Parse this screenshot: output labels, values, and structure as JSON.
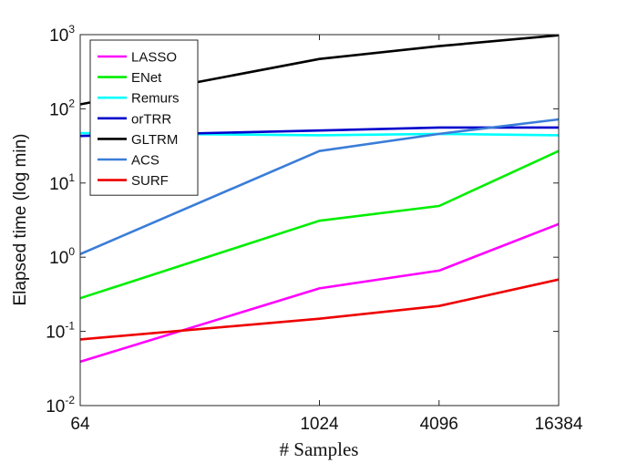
{
  "chart_data": {
    "type": "line",
    "title": "",
    "xlabel": "# Samples",
    "ylabel": "Elapsed time (log min)",
    "x": [
      64,
      1024,
      4096,
      16384
    ],
    "x_scale": "log",
    "xlim": [
      64,
      16384
    ],
    "x_ticks": [
      "64",
      "1024",
      "4096",
      "16384"
    ],
    "y_scale": "log",
    "ylim": [
      0.01,
      1000
    ],
    "y_ticks": [
      {
        "base": "10",
        "exp": "-2",
        "value": 0.01
      },
      {
        "base": "10",
        "exp": "-1",
        "value": 0.1
      },
      {
        "base": "10",
        "exp": "0",
        "value": 1
      },
      {
        "base": "10",
        "exp": "1",
        "value": 10
      },
      {
        "base": "10",
        "exp": "2",
        "value": 100
      },
      {
        "base": "10",
        "exp": "3",
        "value": 1000
      }
    ],
    "grid": false,
    "legend_position": "top-left",
    "series": [
      {
        "name": "LASSO",
        "color": "#ff00ff",
        "values": [
          0.039,
          0.38,
          0.66,
          2.8
        ]
      },
      {
        "name": "ENet",
        "color": "#00ee00",
        "values": [
          0.28,
          3.1,
          4.9,
          27
        ]
      },
      {
        "name": "Remurs",
        "color": "#00ffff",
        "values": [
          47,
          44,
          46,
          44
        ]
      },
      {
        "name": "orTRR",
        "color": "#0000cc",
        "values": [
          43,
          51,
          56,
          56
        ]
      },
      {
        "name": "GLTRM",
        "color": "#000000",
        "values": [
          115,
          470,
          700,
          980
        ]
      },
      {
        "name": "ACS",
        "color": "#3a7dd8",
        "values": [
          1.1,
          27,
          46,
          72
        ]
      },
      {
        "name": "SURF",
        "color": "#ee0000",
        "values": [
          0.078,
          0.148,
          0.22,
          0.5
        ]
      }
    ]
  }
}
